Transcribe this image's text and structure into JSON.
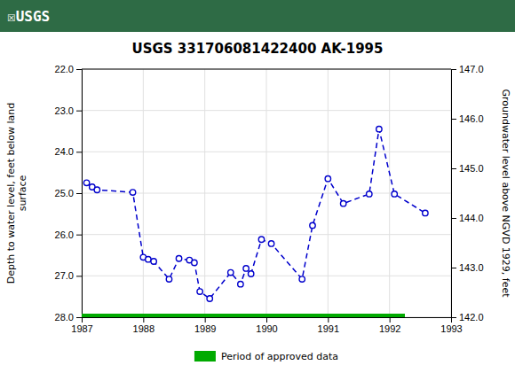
{
  "chart_data": {
    "type": "line",
    "title": "USGS 331706081422400 AK-1995",
    "annotations": [
      "☒USGS"
    ],
    "y_label": "Depth to water level, feet below land\nsurface",
    "y2_label": "Groundwater level above NGVD 1929, feet",
    "xlim": [
      1987.0,
      1993.0
    ],
    "xticks": [
      1987,
      1988,
      1989,
      1990,
      1991,
      1992,
      1993
    ],
    "ylim": [
      28.0,
      22.0
    ],
    "yticks": [
      {
        "value": 22.0,
        "label": "22.0"
      },
      {
        "value": 23.0,
        "label": "23.0"
      },
      {
        "value": 24.0,
        "label": "24.0"
      },
      {
        "value": 25.0,
        "label": "25.0"
      },
      {
        "value": 26.0,
        "label": "26.0"
      },
      {
        "value": 27.0,
        "label": "27.0"
      },
      {
        "value": 28.0,
        "label": "28.0"
      }
    ],
    "y2lim": [
      142.0,
      147.0
    ],
    "y2ticks": [
      {
        "value": 147.0,
        "label": "147.0"
      },
      {
        "value": 146.0,
        "label": "146.0"
      },
      {
        "value": 145.0,
        "label": "145.0"
      },
      {
        "value": 144.0,
        "label": "144.0"
      },
      {
        "value": 143.0,
        "label": "143.0"
      },
      {
        "value": 142.0,
        "label": "142.0"
      }
    ],
    "grid": true,
    "legend": "bottom",
    "series": [
      {
        "type": "line",
        "color": "#0000cc",
        "line_style": "dashed",
        "marker": "circle",
        "x": [
          1987.08,
          1987.17,
          1987.25,
          1987.83,
          1988.0,
          1988.08,
          1988.17,
          1988.42,
          1988.58,
          1988.75,
          1988.83,
          1988.92,
          1989.08,
          1989.42,
          1989.58,
          1989.67,
          1989.75,
          1989.92,
          1990.08,
          1990.58,
          1990.75,
          1991.0,
          1991.25,
          1991.67,
          1991.83,
          1992.08,
          1992.58
        ],
        "values": [
          24.75,
          24.85,
          24.92,
          24.98,
          26.55,
          26.6,
          26.65,
          27.08,
          26.58,
          26.62,
          26.68,
          27.38,
          27.55,
          26.92,
          27.2,
          26.82,
          26.95,
          26.12,
          26.22,
          27.08,
          25.78,
          24.65,
          25.25,
          25.02,
          23.45,
          25.02,
          25.48
        ]
      },
      {
        "name": "Period of approved data",
        "type": "bar",
        "orientation": "horizontal",
        "color": "#00aa00",
        "values": [
          28.0
        ],
        "x_start": [
          1987.0
        ],
        "x_end": [
          1992.25
        ]
      }
    ]
  }
}
